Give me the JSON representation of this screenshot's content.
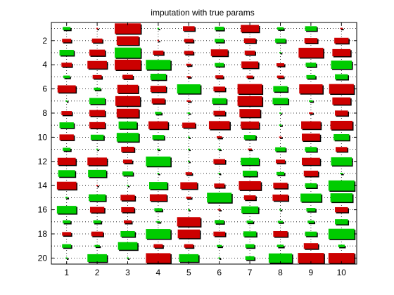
{
  "chart_data": {
    "type": "heatmap",
    "title": "imputation with true params",
    "xlabel": "",
    "ylabel": "",
    "columns": [
      1,
      2,
      3,
      4,
      5,
      6,
      7,
      8,
      9,
      10
    ],
    "rows": [
      1,
      2,
      3,
      4,
      5,
      6,
      7,
      8,
      9,
      10,
      11,
      12,
      13,
      14,
      15,
      16,
      17,
      18,
      19,
      20
    ],
    "x_tick_labels": [
      "1",
      "2",
      "3",
      "4",
      "5",
      "6",
      "7",
      "8",
      "9",
      "10"
    ],
    "y_tick_labels": [
      "2",
      "4",
      "6",
      "8",
      "10",
      "12",
      "14",
      "16",
      "18",
      "20"
    ],
    "xlim": [
      0.5,
      10.5
    ],
    "ylim": [
      0.5,
      20.5
    ],
    "y_reversed": true,
    "grid": "dotted",
    "encoding": "box size = magnitude, color = sign (green positive, red negative)",
    "colors": {
      "positive": "#00cc00",
      "negative": "#cc0000",
      "grid": "#000000"
    },
    "values": [
      [
        0.3,
        -0.05,
        -1.0,
        0.03,
        -0.45,
        0.35,
        -0.7,
        0.25,
        0.45,
        -0.1
      ],
      [
        -0.35,
        -0.4,
        -0.85,
        -0.05,
        -0.35,
        0.35,
        -0.45,
        0.4,
        -0.5,
        -0.55
      ],
      [
        0.55,
        -0.6,
        1.0,
        -0.4,
        -0.35,
        -0.65,
        -0.4,
        0.05,
        -0.95,
        -0.7
      ],
      [
        -0.4,
        -0.75,
        -1.0,
        0.95,
        -0.2,
        0.35,
        -0.65,
        -0.3,
        0.4,
        0.8
      ],
      [
        0.25,
        -0.35,
        -0.4,
        0.6,
        -0.15,
        -0.3,
        -0.25,
        -0.25,
        0.35,
        0.5
      ],
      [
        -0.7,
        0.25,
        -0.8,
        -0.6,
        0.9,
        -0.45,
        -0.95,
        0.55,
        -0.9,
        -0.95
      ],
      [
        0.03,
        0.6,
        -0.95,
        -0.5,
        -0.15,
        0.55,
        -0.95,
        0.6,
        0.15,
        -0.7
      ],
      [
        -0.4,
        -0.6,
        -0.85,
        0.25,
        0.1,
        -0.45,
        -0.8,
        0.05,
        -0.15,
        -0.5
      ],
      [
        0.55,
        -0.6,
        0.7,
        -0.75,
        -0.5,
        -0.8,
        -0.7,
        0.1,
        -0.75,
        -0.85
      ],
      [
        -0.55,
        0.5,
        0.85,
        0.45,
        0.05,
        -0.2,
        0.45,
        -0.1,
        -0.7,
        0.6
      ],
      [
        0.3,
        0.05,
        -0.5,
        0.1,
        0.03,
        0.1,
        -0.15,
        0.4,
        0.45,
        -0.45
      ],
      [
        -0.7,
        -0.75,
        -0.35,
        0.95,
        0.03,
        -0.45,
        0.7,
        -0.35,
        -0.7,
        0.8
      ],
      [
        0.65,
        0.7,
        0.4,
        0.03,
        -0.25,
        0.03,
        0.55,
        0.3,
        -0.55,
        0.1
      ],
      [
        -0.75,
        -0.05,
        0.03,
        0.7,
        -0.65,
        -0.4,
        -0.85,
        -0.55,
        0.45,
        1.0
      ],
      [
        0.1,
        0.65,
        -0.55,
        -0.65,
        -0.2,
        0.95,
        -0.45,
        -0.6,
        0.8,
        0.85
      ],
      [
        0.75,
        -0.55,
        -0.5,
        0.3,
        0.03,
        -0.1,
        0.65,
        0.03,
        0.35,
        -0.5
      ],
      [
        0.3,
        0.3,
        -0.3,
        0.15,
        -0.9,
        0.35,
        0.25,
        0.2,
        0.25,
        0.5
      ],
      [
        -0.35,
        -0.45,
        0.55,
        0.95,
        -0.85,
        -0.45,
        0.5,
        -0.55,
        0.45,
        1.0
      ],
      [
        0.35,
        0.2,
        0.75,
        -0.35,
        -0.35,
        0.2,
        0.35,
        0.25,
        -0.55,
        0.25
      ],
      [
        0.05,
        0.75,
        0.03,
        -0.95,
        0.75,
        0.05,
        0.35,
        0.9,
        -1.0,
        -1.0
      ]
    ]
  }
}
